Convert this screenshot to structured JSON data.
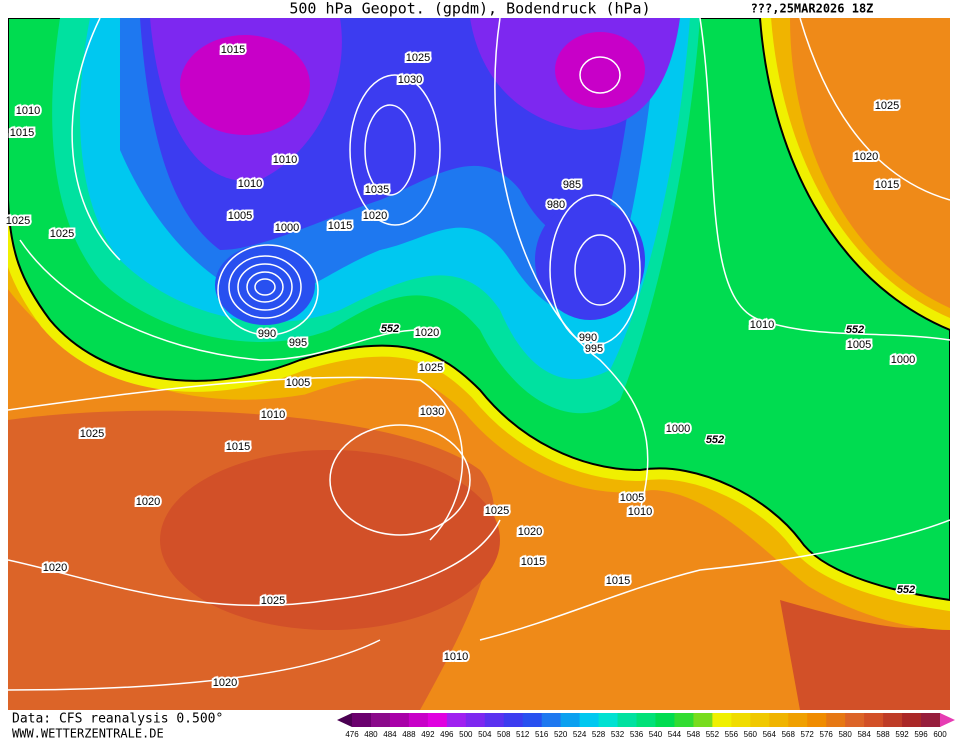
{
  "header": {
    "title": "500 hPa Geopot. (gpdm), Bodendruck (hPa)",
    "date": "???,25MAR2026 18Z"
  },
  "footer": {
    "source": "Data: CFS reanalysis 0.500°",
    "site": "WWW.WETTERZENTRALE.DE"
  },
  "isobar_labels": [
    "1015",
    "1025",
    "1030",
    "1010",
    "1015",
    "1010",
    "1010",
    "1035",
    "985",
    "980",
    "1005",
    "1020",
    "1015",
    "1000",
    "1025",
    "1025",
    "1025",
    "1020",
    "1015",
    "990",
    "995",
    "1020",
    "1010",
    "1005",
    "1000",
    "990",
    "995",
    "1025",
    "1005",
    "1030",
    "1010",
    "1025",
    "1015",
    "1000",
    "1020",
    "1005",
    "1010",
    "1025",
    "1020",
    "1015",
    "1020",
    "1015",
    "1025",
    "1010",
    "1020"
  ],
  "height_labels": [
    "552",
    "552",
    "552",
    "552"
  ],
  "colorbar": {
    "labels": [
      "476",
      "480",
      "484",
      "488",
      "492",
      "496",
      "500",
      "504",
      "508",
      "512",
      "516",
      "520",
      "524",
      "528",
      "532",
      "536",
      "540",
      "544",
      "548",
      "552",
      "556",
      "560",
      "564",
      "568",
      "572",
      "576",
      "580",
      "584",
      "588",
      "592",
      "596",
      "600"
    ],
    "colors": [
      "#4a0052",
      "#6a006e",
      "#8a0a8a",
      "#a800a8",
      "#c800c8",
      "#e000e0",
      "#a020f0",
      "#7d28f0",
      "#5a32f0",
      "#3c3cf0",
      "#2850f0",
      "#1e78f0",
      "#0aa0f0",
      "#00c8f0",
      "#00e1d2",
      "#00e1a0",
      "#00e178",
      "#00dc50",
      "#32dc32",
      "#78dc1e",
      "#f0f000",
      "#f0dc00",
      "#f0c800",
      "#f0b400",
      "#f0a000",
      "#f08c00",
      "#e67814",
      "#dc6428",
      "#d25028",
      "#be3c28",
      "#aa2828",
      "#961e3c",
      "#e63cb4"
    ]
  }
}
